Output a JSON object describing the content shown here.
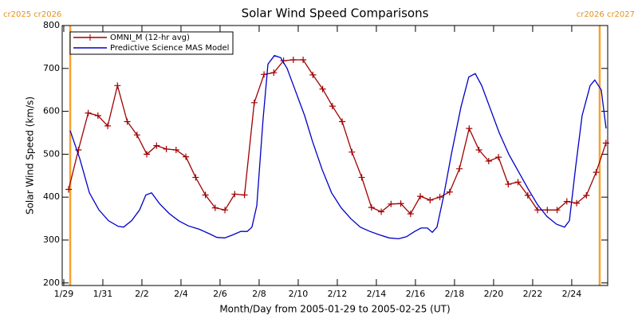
{
  "chart_data": {
    "type": "line",
    "title": "Solar Wind Speed Comparisons",
    "xlabel": "Month/Day from 2005-01-29 to 2005-02-25 (UT)",
    "ylabel": "Solar Wind Speed (km/s)",
    "annotations": [
      "cr2025 cr2026",
      "cr2026 cr2027"
    ],
    "boundary_lines": {
      "color": "#f7a030",
      "x": [
        0.33,
        27.43
      ]
    },
    "xlim": [
      -0.08,
      27.84
    ],
    "ylim": [
      194,
      800
    ],
    "xticks": [
      {
        "value": 0,
        "label": "1/29"
      },
      {
        "value": 2,
        "label": "1/31"
      },
      {
        "value": 4,
        "label": "2/2"
      },
      {
        "value": 6,
        "label": "2/4"
      },
      {
        "value": 8,
        "label": "2/6"
      },
      {
        "value": 10,
        "label": "2/8"
      },
      {
        "value": 12,
        "label": "2/10"
      },
      {
        "value": 14,
        "label": "2/12"
      },
      {
        "value": 16,
        "label": "2/14"
      },
      {
        "value": 18,
        "label": "2/16"
      },
      {
        "value": 20,
        "label": "2/18"
      },
      {
        "value": 22,
        "label": "2/20"
      },
      {
        "value": 24,
        "label": "2/22"
      },
      {
        "value": 26,
        "label": "2/24"
      }
    ],
    "yticks": [
      200,
      300,
      400,
      500,
      600,
      700,
      800
    ],
    "legend": "upper left",
    "series": [
      {
        "name": "OMNI_M (12-hr avg)",
        "color": "#a00000",
        "marker": "plus",
        "x": [
          0.25,
          0.75,
          1.25,
          1.75,
          2.25,
          2.75,
          3.25,
          3.75,
          4.25,
          4.75,
          5.25,
          5.75,
          6.25,
          6.75,
          7.25,
          7.75,
          8.25,
          8.75,
          9.25,
          9.75,
          10.25,
          10.75,
          11.25,
          11.75,
          12.25,
          12.75,
          13.25,
          13.75,
          14.25,
          14.75,
          15.25,
          15.75,
          16.25,
          16.75,
          17.25,
          17.75,
          18.25,
          18.75,
          19.25,
          19.75,
          20.25,
          20.75,
          21.25,
          21.75,
          22.25,
          22.75,
          23.25,
          23.75,
          24.25,
          24.75,
          25.25,
          25.75,
          26.25,
          26.75,
          27.25,
          27.75
        ],
        "values": [
          418,
          510,
          596,
          590,
          566,
          660,
          576,
          545,
          500,
          520,
          512,
          510,
          494,
          446,
          405,
          375,
          370,
          407,
          405,
          620,
          686,
          690,
          718,
          720,
          720,
          685,
          652,
          612,
          576,
          505,
          446,
          376,
          366,
          384,
          385,
          361,
          402,
          393,
          400,
          412,
          466,
          560,
          510,
          484,
          493,
          430,
          435,
          404,
          370,
          370,
          370,
          390,
          386,
          404,
          458,
          526
        ]
      },
      {
        "name": "Predictive Science MAS Model",
        "color": "#0000c8",
        "marker": "none",
        "x": [
          0.33,
          0.82,
          1.31,
          1.8,
          2.29,
          2.78,
          3.06,
          3.47,
          3.88,
          4.2,
          4.49,
          4.9,
          5.39,
          5.88,
          6.37,
          6.94,
          7.43,
          7.84,
          8.24,
          8.65,
          9.06,
          9.39,
          9.63,
          9.88,
          10.2,
          10.45,
          10.78,
          11.1,
          11.43,
          11.84,
          12.33,
          12.73,
          13.22,
          13.71,
          14.2,
          14.69,
          15.18,
          15.67,
          16.16,
          16.65,
          17.14,
          17.55,
          17.96,
          18.29,
          18.61,
          18.86,
          19.1,
          19.43,
          19.84,
          20.33,
          20.73,
          21.06,
          21.39,
          21.8,
          22.29,
          22.78,
          23.27,
          23.76,
          24.24,
          24.73,
          25.22,
          25.63,
          25.88,
          26.2,
          26.53,
          26.94,
          27.18,
          27.51,
          27.76
        ],
        "values": [
          555,
          490,
          410,
          370,
          345,
          332,
          330,
          345,
          370,
          405,
          410,
          385,
          362,
          345,
          333,
          325,
          315,
          306,
          305,
          312,
          320,
          320,
          330,
          380,
          580,
          710,
          730,
          725,
          700,
          650,
          590,
          530,
          465,
          410,
          375,
          350,
          330,
          320,
          312,
          305,
          303,
          308,
          320,
          328,
          328,
          318,
          330,
          400,
          500,
          610,
          680,
          688,
          660,
          610,
          550,
          500,
          460,
          420,
          383,
          355,
          337,
          330,
          345,
          470,
          590,
          660,
          673,
          650,
          560
        ]
      }
    ]
  }
}
